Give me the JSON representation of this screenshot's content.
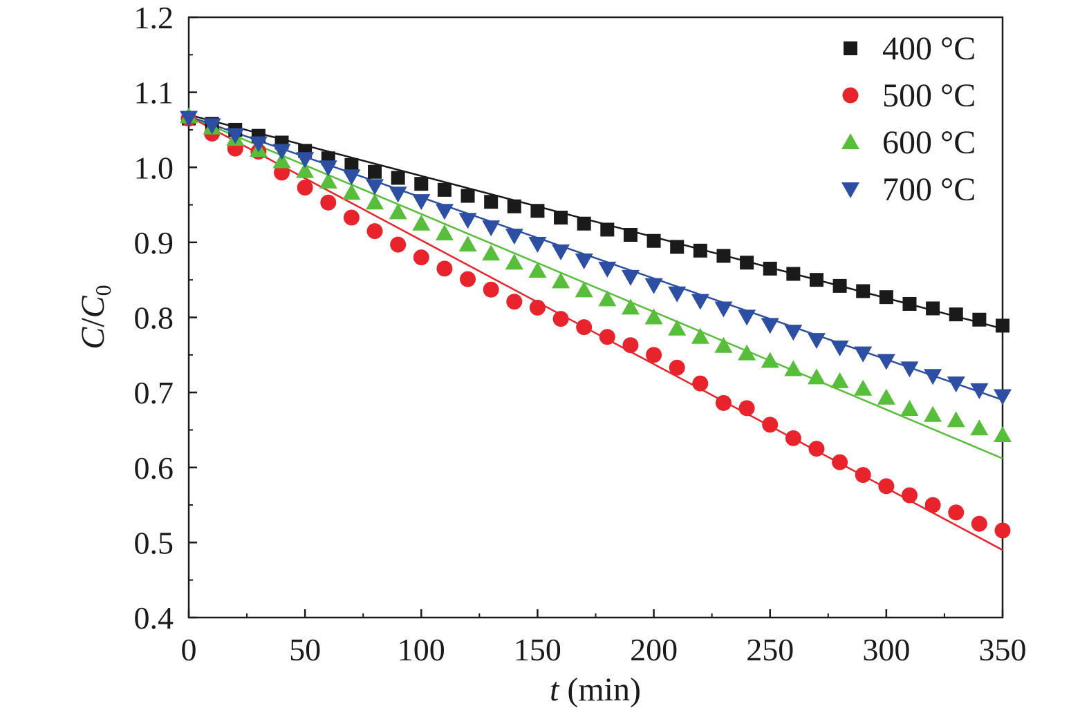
{
  "chart_data": {
    "type": "scatter",
    "xlabel": {
      "var": "t",
      "unit": " (min)"
    },
    "ylabel": {
      "a": "C",
      "sep": "/",
      "b": "C",
      "sub": "0"
    },
    "xlim": [
      0,
      350
    ],
    "ylim": [
      0.4,
      1.2
    ],
    "xticks": [
      "0",
      "50",
      "100",
      "150",
      "200",
      "250",
      "300",
      "350"
    ],
    "yticks": [
      "0.4",
      "0.5",
      "0.6",
      "0.7",
      "0.8",
      "0.9",
      "1.0",
      "1.1",
      "1.2"
    ],
    "grid": false,
    "legend_position": "top-right",
    "x": [
      0,
      10,
      20,
      30,
      40,
      50,
      60,
      70,
      80,
      90,
      100,
      110,
      120,
      130,
      140,
      150,
      160,
      170,
      180,
      190,
      200,
      210,
      220,
      230,
      240,
      250,
      260,
      270,
      280,
      290,
      300,
      310,
      320,
      330,
      340,
      350
    ],
    "series": [
      {
        "name": "400 °C",
        "marker": "square",
        "color": "#1a1a1a",
        "values": [
          1.065,
          1.058,
          1.05,
          1.042,
          1.033,
          1.022,
          1.012,
          1.003,
          0.994,
          0.986,
          0.978,
          0.97,
          0.962,
          0.954,
          0.948,
          0.942,
          0.933,
          0.925,
          0.917,
          0.91,
          0.902,
          0.894,
          0.889,
          0.882,
          0.873,
          0.865,
          0.858,
          0.85,
          0.842,
          0.835,
          0.827,
          0.818,
          0.812,
          0.804,
          0.797,
          0.789
        ],
        "fit": [
          1.07,
          0.785
        ]
      },
      {
        "name": "500 °C",
        "marker": "circle",
        "color": "#e8232b",
        "values": [
          1.065,
          1.045,
          1.025,
          1.021,
          0.993,
          0.973,
          0.953,
          0.933,
          0.915,
          0.897,
          0.88,
          0.865,
          0.851,
          0.837,
          0.821,
          0.813,
          0.798,
          0.787,
          0.774,
          0.763,
          0.75,
          0.733,
          0.712,
          0.686,
          0.679,
          0.657,
          0.639,
          0.625,
          0.607,
          0.59,
          0.575,
          0.563,
          0.55,
          0.54,
          0.525,
          0.516
        ],
        "fit": [
          1.068,
          0.49
        ]
      },
      {
        "name": "600 °C",
        "marker": "triangle-up",
        "color": "#57be3a",
        "values": [
          1.068,
          1.053,
          1.038,
          1.023,
          1.008,
          0.995,
          0.981,
          0.966,
          0.953,
          0.94,
          0.925,
          0.912,
          0.897,
          0.885,
          0.873,
          0.862,
          0.848,
          0.836,
          0.824,
          0.813,
          0.8,
          0.785,
          0.774,
          0.762,
          0.752,
          0.742,
          0.731,
          0.72,
          0.715,
          0.705,
          0.693,
          0.678,
          0.67,
          0.663,
          0.652,
          0.643
        ],
        "fit": [
          1.068,
          0.612
        ]
      },
      {
        "name": "700 °C",
        "marker": "triangle-down",
        "color": "#2c4ea3",
        "values": [
          1.066,
          1.056,
          1.043,
          1.032,
          1.022,
          1.011,
          1.0,
          0.988,
          0.975,
          0.965,
          0.955,
          0.942,
          0.93,
          0.92,
          0.909,
          0.898,
          0.888,
          0.876,
          0.865,
          0.854,
          0.843,
          0.832,
          0.822,
          0.812,
          0.801,
          0.79,
          0.781,
          0.77,
          0.76,
          0.752,
          0.742,
          0.732,
          0.722,
          0.712,
          0.703,
          0.695
        ],
        "fit": [
          1.068,
          0.69
        ]
      }
    ]
  }
}
